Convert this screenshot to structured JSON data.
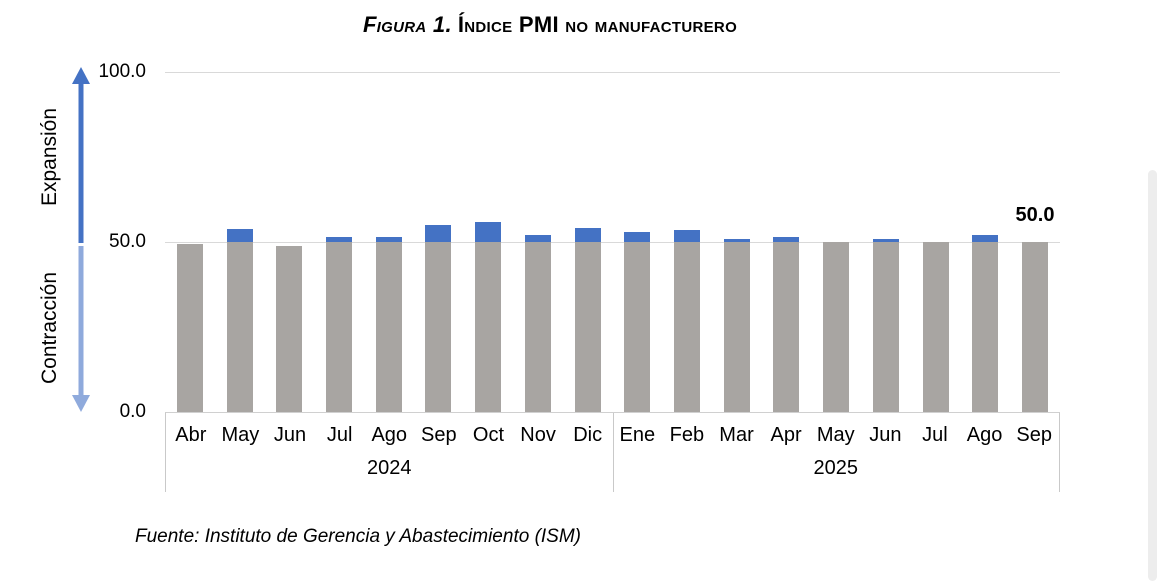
{
  "title": {
    "figure_label": "Figura 1.",
    "title_text": "Índice PMI no manufacturero"
  },
  "y_axis": {
    "ticks": [
      "100.0",
      "50.0",
      "0.0"
    ],
    "expansion_label": "Expansión",
    "contraction_label": "Contracción"
  },
  "annotation": {
    "last_bar_label": "50.0"
  },
  "source_note": "Fuente: Instituto de Gerencia y Abastecimiento (ISM)",
  "chart_data": {
    "type": "bar",
    "title": "Figura 1. Índice PMI no manufacturero",
    "categories": [
      "Abr",
      "May",
      "Jun",
      "Jul",
      "Ago",
      "Sep",
      "Oct",
      "Nov",
      "Dic",
      "Ene",
      "Feb",
      "Mar",
      "Apr",
      "May",
      "Jun",
      "Jul",
      "Ago",
      "Sep"
    ],
    "year_groups": [
      {
        "label": "2024",
        "count": 9
      },
      {
        "label": "2025",
        "count": 9
      }
    ],
    "values": [
      49.4,
      53.8,
      48.8,
      51.4,
      51.5,
      54.9,
      56.0,
      52.1,
      54.1,
      52.8,
      53.5,
      50.8,
      51.6,
      49.9,
      50.8,
      50.1,
      52.0,
      50.0
    ],
    "threshold": 50,
    "ylim": [
      0,
      100
    ],
    "y_tick_values": [
      0,
      50,
      100
    ],
    "grid": true,
    "legend": false,
    "colors": {
      "above_threshold_bar": "#4472c4",
      "below_threshold_bar": "#a8a5a2",
      "expansion_arrow": "#4472c4",
      "contraction_arrow": "#8faadc",
      "gridline": "#d9d9d9"
    }
  }
}
